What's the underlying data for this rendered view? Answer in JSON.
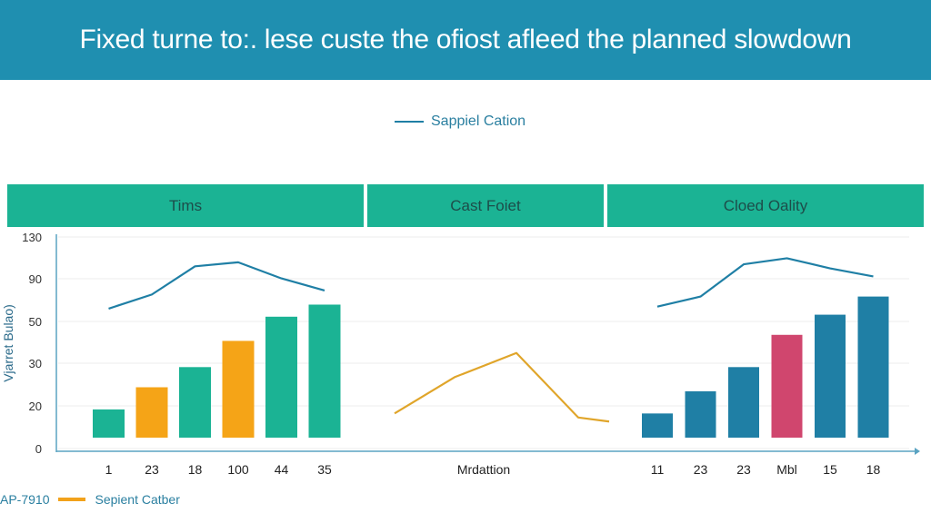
{
  "title": "Fixed turne to:. lese custe the ofiost afleed the planned slowdown",
  "legend_top": {
    "label": "Sappiel Cation",
    "color": "#1f7fa5"
  },
  "colors": {
    "teal": "#1bb394",
    "orange": "#f5a417",
    "blue": "#1f7fa5",
    "crimson": "#d0466e",
    "gold": "#e0a52a"
  },
  "chart_data": [
    {
      "type": "bar",
      "title": "Tims",
      "ylabel": "Vjarret Bulao)",
      "y_ticks": [
        "0",
        "20",
        "30",
        "50",
        "90",
        "130"
      ],
      "categories": [
        "1",
        "23",
        "18",
        "100",
        "44",
        "35"
      ],
      "values": [
        14,
        25,
        35,
        48,
        60,
        66
      ],
      "bar_colors": [
        "teal",
        "orange",
        "teal",
        "orange",
        "teal",
        "teal"
      ],
      "line": [
        {
          "x": 0,
          "y": 64
        },
        {
          "x": 1,
          "y": 71
        },
        {
          "x": 2,
          "y": 85
        },
        {
          "x": 3,
          "y": 87
        },
        {
          "x": 4,
          "y": 79
        },
        {
          "x": 5,
          "y": 73
        }
      ],
      "line_color": "blue"
    },
    {
      "type": "line",
      "title": "Cast Foiet",
      "xlabel": "Mrdattion",
      "points": [
        {
          "x": 0,
          "y": 12
        },
        {
          "x": 1,
          "y": 30
        },
        {
          "x": 2,
          "y": 42
        },
        {
          "x": 3,
          "y": 10
        },
        {
          "x": 4,
          "y": 8
        }
      ],
      "line_color": "gold"
    },
    {
      "type": "bar",
      "title": "Cloed Oality",
      "categories": [
        "11",
        "23",
        "23",
        "Mbl",
        "15",
        "18"
      ],
      "values": [
        12,
        23,
        35,
        51,
        61,
        70
      ],
      "bar_colors": [
        "blue",
        "blue",
        "blue",
        "crimson",
        "blue",
        "blue"
      ],
      "line": [
        {
          "x": 0,
          "y": 65
        },
        {
          "x": 1,
          "y": 70
        },
        {
          "x": 2,
          "y": 86
        },
        {
          "x": 3,
          "y": 89
        },
        {
          "x": 4,
          "y": 84
        },
        {
          "x": 5,
          "y": 80
        }
      ],
      "line_color": "blue"
    }
  ],
  "legend_bottom": {
    "code": "AP-7910",
    "label": "Sepient Catber",
    "color": "#f2a21b"
  }
}
